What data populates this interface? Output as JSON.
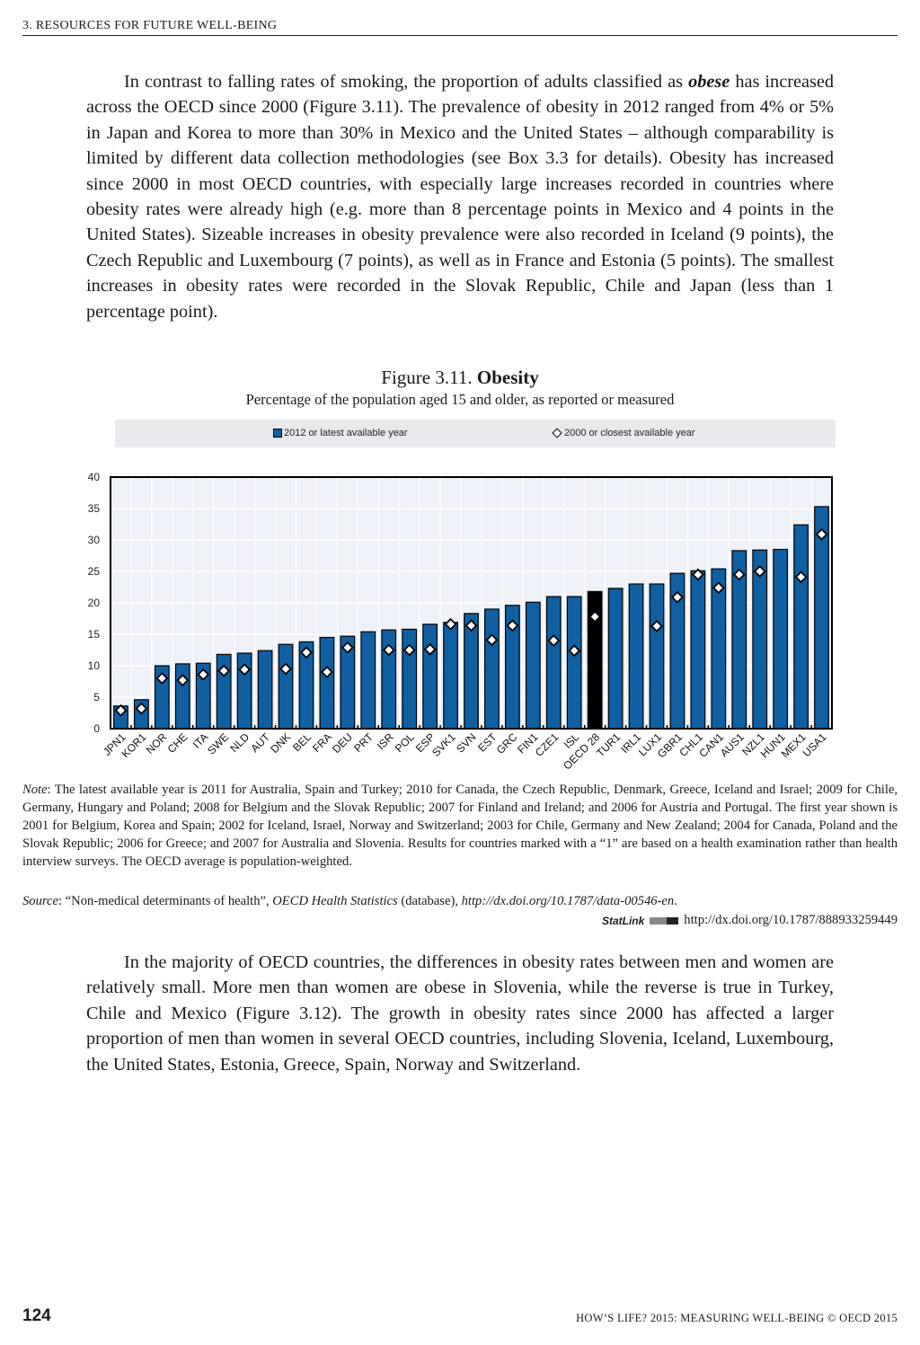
{
  "running_head": "3. RESOURCES FOR FUTURE WELL-BEING",
  "paragraph1": {
    "before": "In contrast to falling rates of smoking, the proportion of adults classified as ",
    "emph": "obese",
    "after": " has increased across the OECD since 2000 (Figure 3.11). The prevalence of obesity in 2012 ranged from 4% or 5% in Japan and Korea to more than 30% in Mexico and the United States – although comparability is limited by different data collection methodologies (see Box 3.3 for details). Obesity has increased since 2000 in most OECD countries, with especially large increases recorded in countries where obesity rates were already high (e.g. more than 8 percentage points in Mexico and 4 points in the United States). Sizeable increases in obesity prevalence were also recorded in Iceland (9 points), the Czech Republic and Luxembourg (7 points), as well as in France and Estonia (5 points). The smallest increases in obesity rates were recorded in the Slovak Republic, Chile and Japan (less than 1 percentage point)."
  },
  "figure": {
    "number": "Figure 3.11. ",
    "title": "Obesity",
    "subtitle": "Percentage of the population aged 15 and older, as reported or measured"
  },
  "chart_data": {
    "type": "bar",
    "ylim": [
      0,
      40
    ],
    "yticks": [
      "0",
      "5",
      "10",
      "15",
      "20",
      "25",
      "30",
      "35",
      "40"
    ],
    "grid": true,
    "legend_position": "top",
    "colors": {
      "bar": "#0f5fa3",
      "highlight": "#000000",
      "marker": "#ffffff",
      "plot_bg": "#eef1f8"
    },
    "highlight_category": "OECD 28",
    "categories": [
      "JPN1",
      "KOR1",
      "NOR",
      "CHE",
      "ITA",
      "SWE",
      "NLD",
      "AUT",
      "DNK",
      "BEL",
      "FRA",
      "DEU",
      "PRT",
      "ISR",
      "POL",
      "ESP",
      "SVK1",
      "SVN",
      "EST",
      "GRC",
      "FIN1",
      "CZE1",
      "ISL",
      "OECD 28",
      "TUR1",
      "IRL1",
      "LUX1",
      "GBR1",
      "CHL1",
      "CAN1",
      "AUS1",
      "NZL1",
      "HUN1",
      "MEX1",
      "USA1"
    ],
    "series": [
      {
        "name": "2012 or latest available year",
        "type": "bar",
        "values": [
          3.6,
          4.6,
          10.0,
          10.3,
          10.4,
          11.8,
          12.0,
          12.4,
          13.4,
          13.8,
          14.5,
          14.7,
          15.4,
          15.7,
          15.8,
          16.6,
          16.9,
          18.3,
          19.0,
          19.6,
          20.1,
          21.0,
          21.0,
          21.8,
          22.3,
          23.0,
          23.0,
          24.7,
          25.1,
          25.4,
          28.3,
          28.4,
          28.5,
          32.4,
          35.3
        ]
      },
      {
        "name": "2000 or closest available year",
        "type": "marker",
        "values": [
          2.9,
          3.2,
          8.0,
          7.7,
          8.6,
          9.2,
          9.4,
          null,
          9.5,
          12.1,
          9.0,
          12.9,
          null,
          12.5,
          12.5,
          12.6,
          16.6,
          16.4,
          14.1,
          16.4,
          null,
          14.0,
          12.4,
          17.8,
          null,
          null,
          16.3,
          20.9,
          24.5,
          22.4,
          24.5,
          25.0,
          null,
          24.1,
          30.9
        ]
      }
    ]
  },
  "note": {
    "label": "Note",
    "text": ": The latest available year is 2011 for Australia, Spain and Turkey; 2010 for Canada, the Czech Republic, Denmark, Greece, Iceland and Israel; 2009 for Chile, Germany, Hungary and Poland; 2008 for Belgium and the Slovak Republic; 2007 for Finland and Ireland; and 2006 for Austria and Portugal. The first year shown is 2001 for Belgium, Korea and Spain; 2002 for Iceland, Israel, Norway and Switzerland; 2003 for Chile, Germany and New Zealand; 2004 for Canada, Poland and the Slovak Republic; 2006 for Greece; and 2007 for Australia and Slovenia. Results for countries marked with a “1” are based on a health examination rather than health interview surveys. The OECD average is population-weighted."
  },
  "source": {
    "label": "Source",
    "text1": ": “Non-medical determinants of health”, ",
    "db": "OECD Health Statistics",
    "text2": " (database), ",
    "url": "http://dx.doi.org/10.1787/data-00546-en",
    "end": "."
  },
  "statlink": {
    "label": "StatLink",
    "url": "http://dx.doi.org/10.1787/888933259449"
  },
  "paragraph2": "In the majority of OECD countries, the differences in obesity rates between men and women are relatively small. More men than women are obese in Slovenia, while the reverse is true in Turkey, Chile and Mexico (Figure 3.12). The growth in obesity rates since 2000 has affected a larger proportion of men than women in several OECD countries, including Slovenia, Iceland, Luxembourg, the United States, Estonia, Greece, Spain, Norway and Switzerland.",
  "footer": {
    "page_number": "124",
    "publication": "HOW’S LIFE? 2015: MEASURING WELL-BEING © OECD 2015"
  }
}
